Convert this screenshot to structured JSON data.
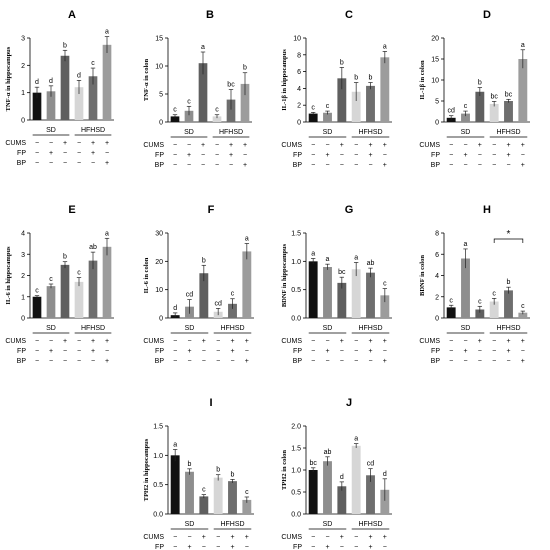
{
  "chart_data": [
    {
      "type": "bar",
      "panel": "A",
      "ylabel": "TNF-α in hippocampus",
      "ylim": [
        0,
        3
      ],
      "yticks": [
        "0",
        "1",
        "2",
        "3"
      ],
      "values": [
        1.0,
        1.05,
        2.35,
        1.2,
        1.6,
        2.75
      ],
      "errors": [
        0.2,
        0.2,
        0.2,
        0.25,
        0.3,
        0.3
      ],
      "letters": [
        "d",
        "d",
        "b",
        "d",
        "c",
        "a"
      ],
      "groups": [
        "SD",
        "HFHSD"
      ],
      "has_factor_rows": true
    },
    {
      "type": "bar",
      "panel": "B",
      "ylabel": "TNF-α in colon",
      "ylim": [
        0,
        15
      ],
      "yticks": [
        "0",
        "5",
        "10",
        "15"
      ],
      "values": [
        1.0,
        2.0,
        10.5,
        1.0,
        4.0,
        6.8
      ],
      "errors": [
        0.3,
        0.8,
        2.0,
        0.3,
        1.8,
        2.0
      ],
      "letters": [
        "c",
        "c",
        "a",
        "c",
        "bc",
        "b"
      ],
      "groups": [
        "SD",
        "HFHSD"
      ],
      "has_factor_rows": true
    },
    {
      "type": "bar",
      "panel": "C",
      "ylabel": "IL-1β in hippocampus",
      "ylim": [
        0,
        10
      ],
      "yticks": [
        "0",
        "2",
        "4",
        "6",
        "8",
        "10"
      ],
      "values": [
        1.0,
        1.1,
        5.2,
        3.6,
        4.3,
        7.7
      ],
      "errors": [
        0.15,
        0.2,
        1.3,
        1.1,
        0.4,
        0.7
      ],
      "letters": [
        "c",
        "c",
        "b",
        "b",
        "b",
        "a"
      ],
      "groups": [
        "SD",
        "HFHSD"
      ],
      "has_factor_rows": true
    },
    {
      "type": "bar",
      "panel": "D",
      "ylabel": "IL-1β in colon",
      "ylim": [
        0,
        20
      ],
      "yticks": [
        "0",
        "5",
        "10",
        "15",
        "20"
      ],
      "values": [
        1.0,
        2.0,
        7.2,
        4.3,
        5.0,
        15.0
      ],
      "errors": [
        0.5,
        0.6,
        1.0,
        0.6,
        0.4,
        2.2
      ],
      "letters": [
        "cd",
        "c",
        "b",
        "bc",
        "bc",
        "a"
      ],
      "groups": [
        "SD",
        "HFHSD"
      ],
      "has_factor_rows": true
    },
    {
      "type": "bar",
      "panel": "E",
      "ylabel": "IL-6 in hippocampus",
      "ylim": [
        0,
        4
      ],
      "yticks": [
        "0",
        "1",
        "2",
        "3",
        "4"
      ],
      "values": [
        1.0,
        1.5,
        2.5,
        1.7,
        2.7,
        3.35
      ],
      "errors": [
        0.05,
        0.1,
        0.15,
        0.2,
        0.4,
        0.4
      ],
      "letters": [
        "c",
        "c",
        "b",
        "c",
        "ab",
        "a"
      ],
      "groups": [
        "SD",
        "HFHSD"
      ],
      "has_factor_rows": true
    },
    {
      "type": "bar",
      "panel": "F",
      "ylabel": "IL-6 in colon",
      "ylim": [
        0,
        30
      ],
      "yticks": [
        "0",
        "10",
        "20",
        "30"
      ],
      "values": [
        1.0,
        4.0,
        15.8,
        2.2,
        5.0,
        23.5
      ],
      "errors": [
        0.8,
        2.5,
        2.8,
        1.2,
        1.8,
        2.8
      ],
      "letters": [
        "d",
        "cd",
        "b",
        "cd",
        "c",
        "a"
      ],
      "groups": [
        "SD",
        "HFHSD"
      ],
      "has_factor_rows": true
    },
    {
      "type": "bar",
      "panel": "G",
      "ylabel": "BDNF in hippocampus",
      "ylim": [
        0,
        1.5
      ],
      "yticks": [
        "0.0",
        "0.5",
        "1.0",
        "1.5"
      ],
      "values": [
        1.0,
        0.9,
        0.62,
        0.86,
        0.8,
        0.4
      ],
      "errors": [
        0.05,
        0.05,
        0.1,
        0.12,
        0.08,
        0.12
      ],
      "letters": [
        "a",
        "a",
        "bc",
        "a",
        "ab",
        "c"
      ],
      "groups": [
        "SD",
        "HFHSD"
      ],
      "has_factor_rows": true
    },
    {
      "type": "bar",
      "panel": "H",
      "ylabel": "BDNF in colon",
      "ylim": [
        0,
        8
      ],
      "yticks": [
        "0",
        "2",
        "4",
        "6",
        "8"
      ],
      "values": [
        1.0,
        5.6,
        0.8,
        1.55,
        2.6,
        0.5
      ],
      "errors": [
        0.2,
        0.9,
        0.3,
        0.3,
        0.3,
        0.15
      ],
      "letters": [
        "c",
        "a",
        "c",
        "c",
        "b",
        "c"
      ],
      "groups": [
        "SD",
        "HFHSD"
      ],
      "has_factor_rows": true,
      "significance": "*"
    },
    {
      "type": "bar",
      "panel": "I",
      "ylabel": "TPH2 in hippocampus",
      "ylim": [
        0,
        1.5
      ],
      "yticks": [
        "0.0",
        "0.5",
        "1.0",
        "1.5"
      ],
      "values": [
        1.0,
        0.72,
        0.3,
        0.62,
        0.56,
        0.24
      ],
      "errors": [
        0.1,
        0.05,
        0.03,
        0.05,
        0.03,
        0.05
      ],
      "letters": [
        "a",
        "b",
        "c",
        "b",
        "b",
        "c"
      ],
      "groups": [
        "SD",
        "HFHSD"
      ],
      "has_factor_rows": true
    },
    {
      "type": "bar",
      "panel": "J",
      "ylabel": "TPH2 in colon",
      "ylim": [
        0,
        2.0
      ],
      "yticks": [
        "0.0",
        "0.5",
        "1.0",
        "1.5",
        "2.0"
      ],
      "values": [
        1.0,
        1.2,
        0.63,
        1.55,
        0.88,
        0.55
      ],
      "errors": [
        0.05,
        0.1,
        0.1,
        0.05,
        0.15,
        0.25
      ],
      "letters": [
        "bc",
        "ab",
        "d",
        "a",
        "cd",
        "d"
      ],
      "groups": [
        "SD",
        "HFHSD"
      ],
      "has_factor_rows": true
    }
  ],
  "factor_rows": {
    "labels": [
      "CUMS",
      "FP",
      "BP"
    ],
    "signs": [
      [
        "−",
        "−",
        "+",
        "−",
        "+",
        "+"
      ],
      [
        "−",
        "+",
        "−",
        "−",
        "+",
        "−"
      ],
      [
        "−",
        "−",
        "−",
        "−",
        "−",
        "+"
      ]
    ]
  },
  "bar_colors": [
    "#111111",
    "#8e8e8e",
    "#5f5f5f",
    "#d6d6d6",
    "#6e6e6e",
    "#9c9c9c"
  ]
}
